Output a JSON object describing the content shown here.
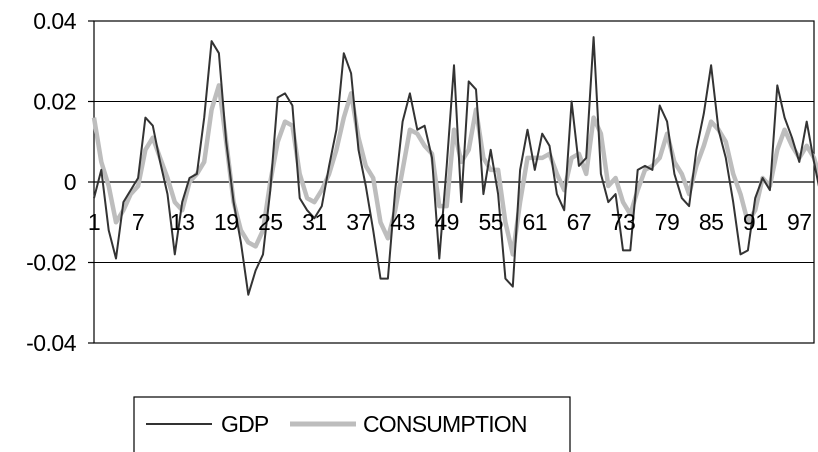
{
  "chart_data": {
    "type": "line",
    "title": "",
    "xlabel": "",
    "ylabel": "",
    "ylim": [
      -0.04,
      0.04
    ],
    "y_ticks": [
      "0.04",
      "0.02",
      "0",
      "-0.02",
      "-0.04"
    ],
    "y_tick_values": [
      0.04,
      0.02,
      0,
      -0.02,
      -0.04
    ],
    "x_tick_labels": [
      "1",
      "7",
      "13",
      "19",
      "25",
      "31",
      "37",
      "43",
      "49",
      "55",
      "61",
      "67",
      "73",
      "79",
      "85",
      "91",
      "97"
    ],
    "x_range": [
      1,
      99
    ],
    "grid": "horizontal",
    "legend_position": "bottom",
    "series": [
      {
        "name": "GDP",
        "color": "#333333",
        "values": [
          -0.004,
          0.003,
          -0.012,
          -0.019,
          -0.005,
          -0.002,
          0.001,
          0.016,
          0.014,
          0.005,
          -0.003,
          -0.018,
          -0.005,
          0.001,
          0.002,
          0.016,
          0.035,
          0.032,
          0.01,
          -0.005,
          -0.015,
          -0.028,
          -0.022,
          -0.018,
          -0.002,
          0.021,
          0.022,
          0.019,
          -0.004,
          -0.007,
          -0.009,
          -0.006,
          0.004,
          0.013,
          0.032,
          0.027,
          0.008,
          -0.001,
          -0.012,
          -0.024,
          -0.024,
          -0.002,
          0.015,
          0.022,
          0.013,
          0.014,
          0.006,
          -0.019,
          0.004,
          0.029,
          -0.005,
          0.025,
          0.023,
          -0.003,
          0.008,
          -0.003,
          -0.024,
          -0.026,
          0.003,
          0.013,
          0.003,
          0.012,
          0.009,
          -0.003,
          -0.007,
          0.02,
          0.004,
          0.006,
          0.036,
          0.002,
          -0.005,
          -0.003,
          -0.017,
          -0.017,
          0.003,
          0.004,
          0.003,
          0.019,
          0.015,
          0.002,
          -0.004,
          -0.006,
          0.008,
          0.017,
          0.029,
          0.013,
          0.006,
          -0.005,
          -0.018,
          -0.017,
          -0.004,
          0.001,
          -0.002,
          0.024,
          0.016,
          0.011,
          0.005,
          0.015,
          0.005,
          -0.004
        ]
      },
      {
        "name": "CONSUMPTION",
        "color": "#bdbdbd",
        "values": [
          0.016,
          0.005,
          -0.001,
          -0.01,
          -0.007,
          -0.003,
          -0.001,
          0.008,
          0.011,
          0.006,
          0.001,
          -0.005,
          -0.007,
          0.0,
          0.002,
          0.005,
          0.018,
          0.024,
          0.01,
          -0.005,
          -0.012,
          -0.015,
          -0.016,
          -0.012,
          0.0,
          0.01,
          0.015,
          0.014,
          0.002,
          -0.004,
          -0.005,
          -0.002,
          0.002,
          0.008,
          0.016,
          0.022,
          0.011,
          0.004,
          0.001,
          -0.01,
          -0.014,
          -0.007,
          0.003,
          0.013,
          0.012,
          0.009,
          0.007,
          -0.006,
          -0.006,
          0.013,
          0.005,
          0.008,
          0.018,
          0.006,
          0.003,
          0.003,
          -0.01,
          -0.018,
          -0.005,
          0.006,
          0.006,
          0.006,
          0.007,
          0.002,
          -0.002,
          0.006,
          0.007,
          0.002,
          0.016,
          0.012,
          -0.001,
          0.001,
          -0.005,
          -0.008,
          -0.002,
          0.003,
          0.004,
          0.006,
          0.012,
          0.005,
          0.002,
          -0.003,
          0.004,
          0.009,
          0.015,
          0.013,
          0.01,
          0.002,
          -0.003,
          -0.01,
          -0.007,
          0.001,
          -0.001,
          0.008,
          0.013,
          0.009,
          0.006,
          0.009,
          0.006,
          0.0
        ]
      }
    ]
  }
}
